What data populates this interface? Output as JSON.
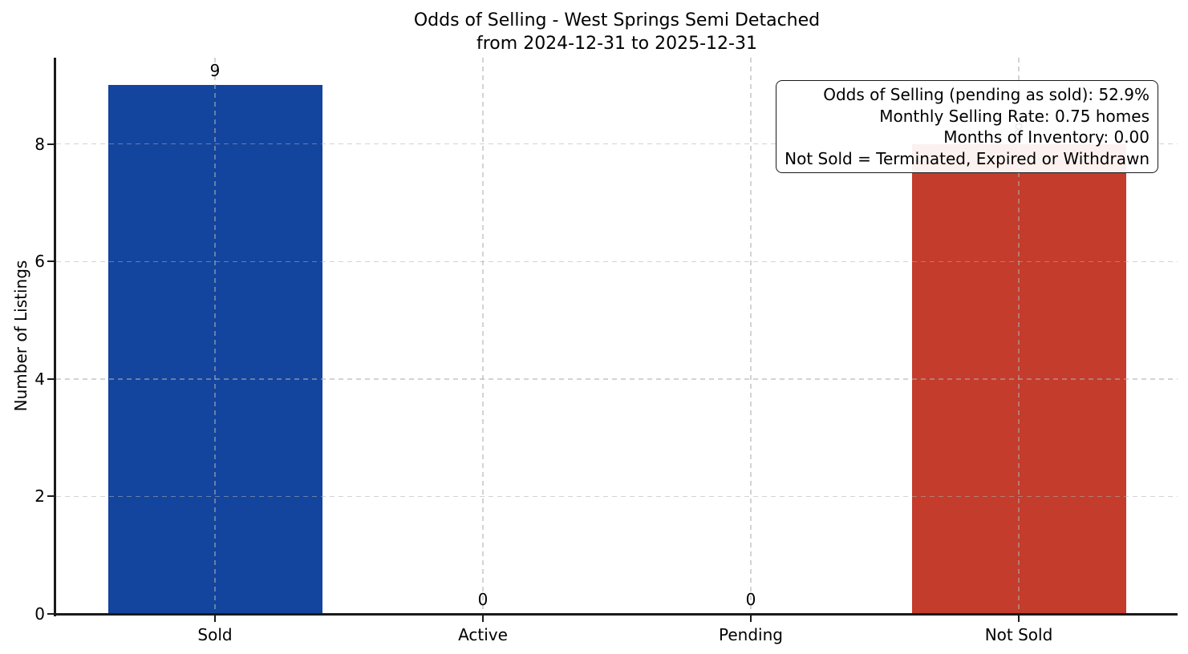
{
  "chart_data": {
    "type": "bar",
    "title_lines": [
      "Odds of Selling - West Springs Semi Detached",
      "from 2024-12-31 to 2025-12-31"
    ],
    "categories": [
      "Sold",
      "Active",
      "Pending",
      "Not Sold"
    ],
    "values": [
      9,
      0,
      0,
      8
    ],
    "bar_colors": [
      "#13449e",
      "#13449e",
      "#13449e",
      "#c33c2c"
    ],
    "value_labels": [
      "9",
      "0",
      "0",
      "8"
    ],
    "xlabel": "",
    "ylabel": "Number of Listings",
    "ylim": [
      0,
      9.47
    ],
    "yticks": [
      0,
      2,
      4,
      6,
      8
    ],
    "grid": {
      "which": "both",
      "style": "dashed"
    },
    "legend": "none",
    "annotation_box": {
      "position": "top-right",
      "lines": [
        "Odds of Selling (pending as sold): 52.9%",
        "Monthly Selling Rate: 0.75 homes",
        "Months of Inventory: 0.00",
        "Not Sold = Terminated, Expired or Withdrawn"
      ]
    }
  },
  "style": {
    "background": "#ffffff",
    "text_color": "#000000",
    "spine_color": "#1a1a1a",
    "grid_color": "rgba(175,175,175,0.55)",
    "annotation_bg": "rgba(255,255,255,0.93)",
    "annotation_border": "#1a1a1a"
  }
}
